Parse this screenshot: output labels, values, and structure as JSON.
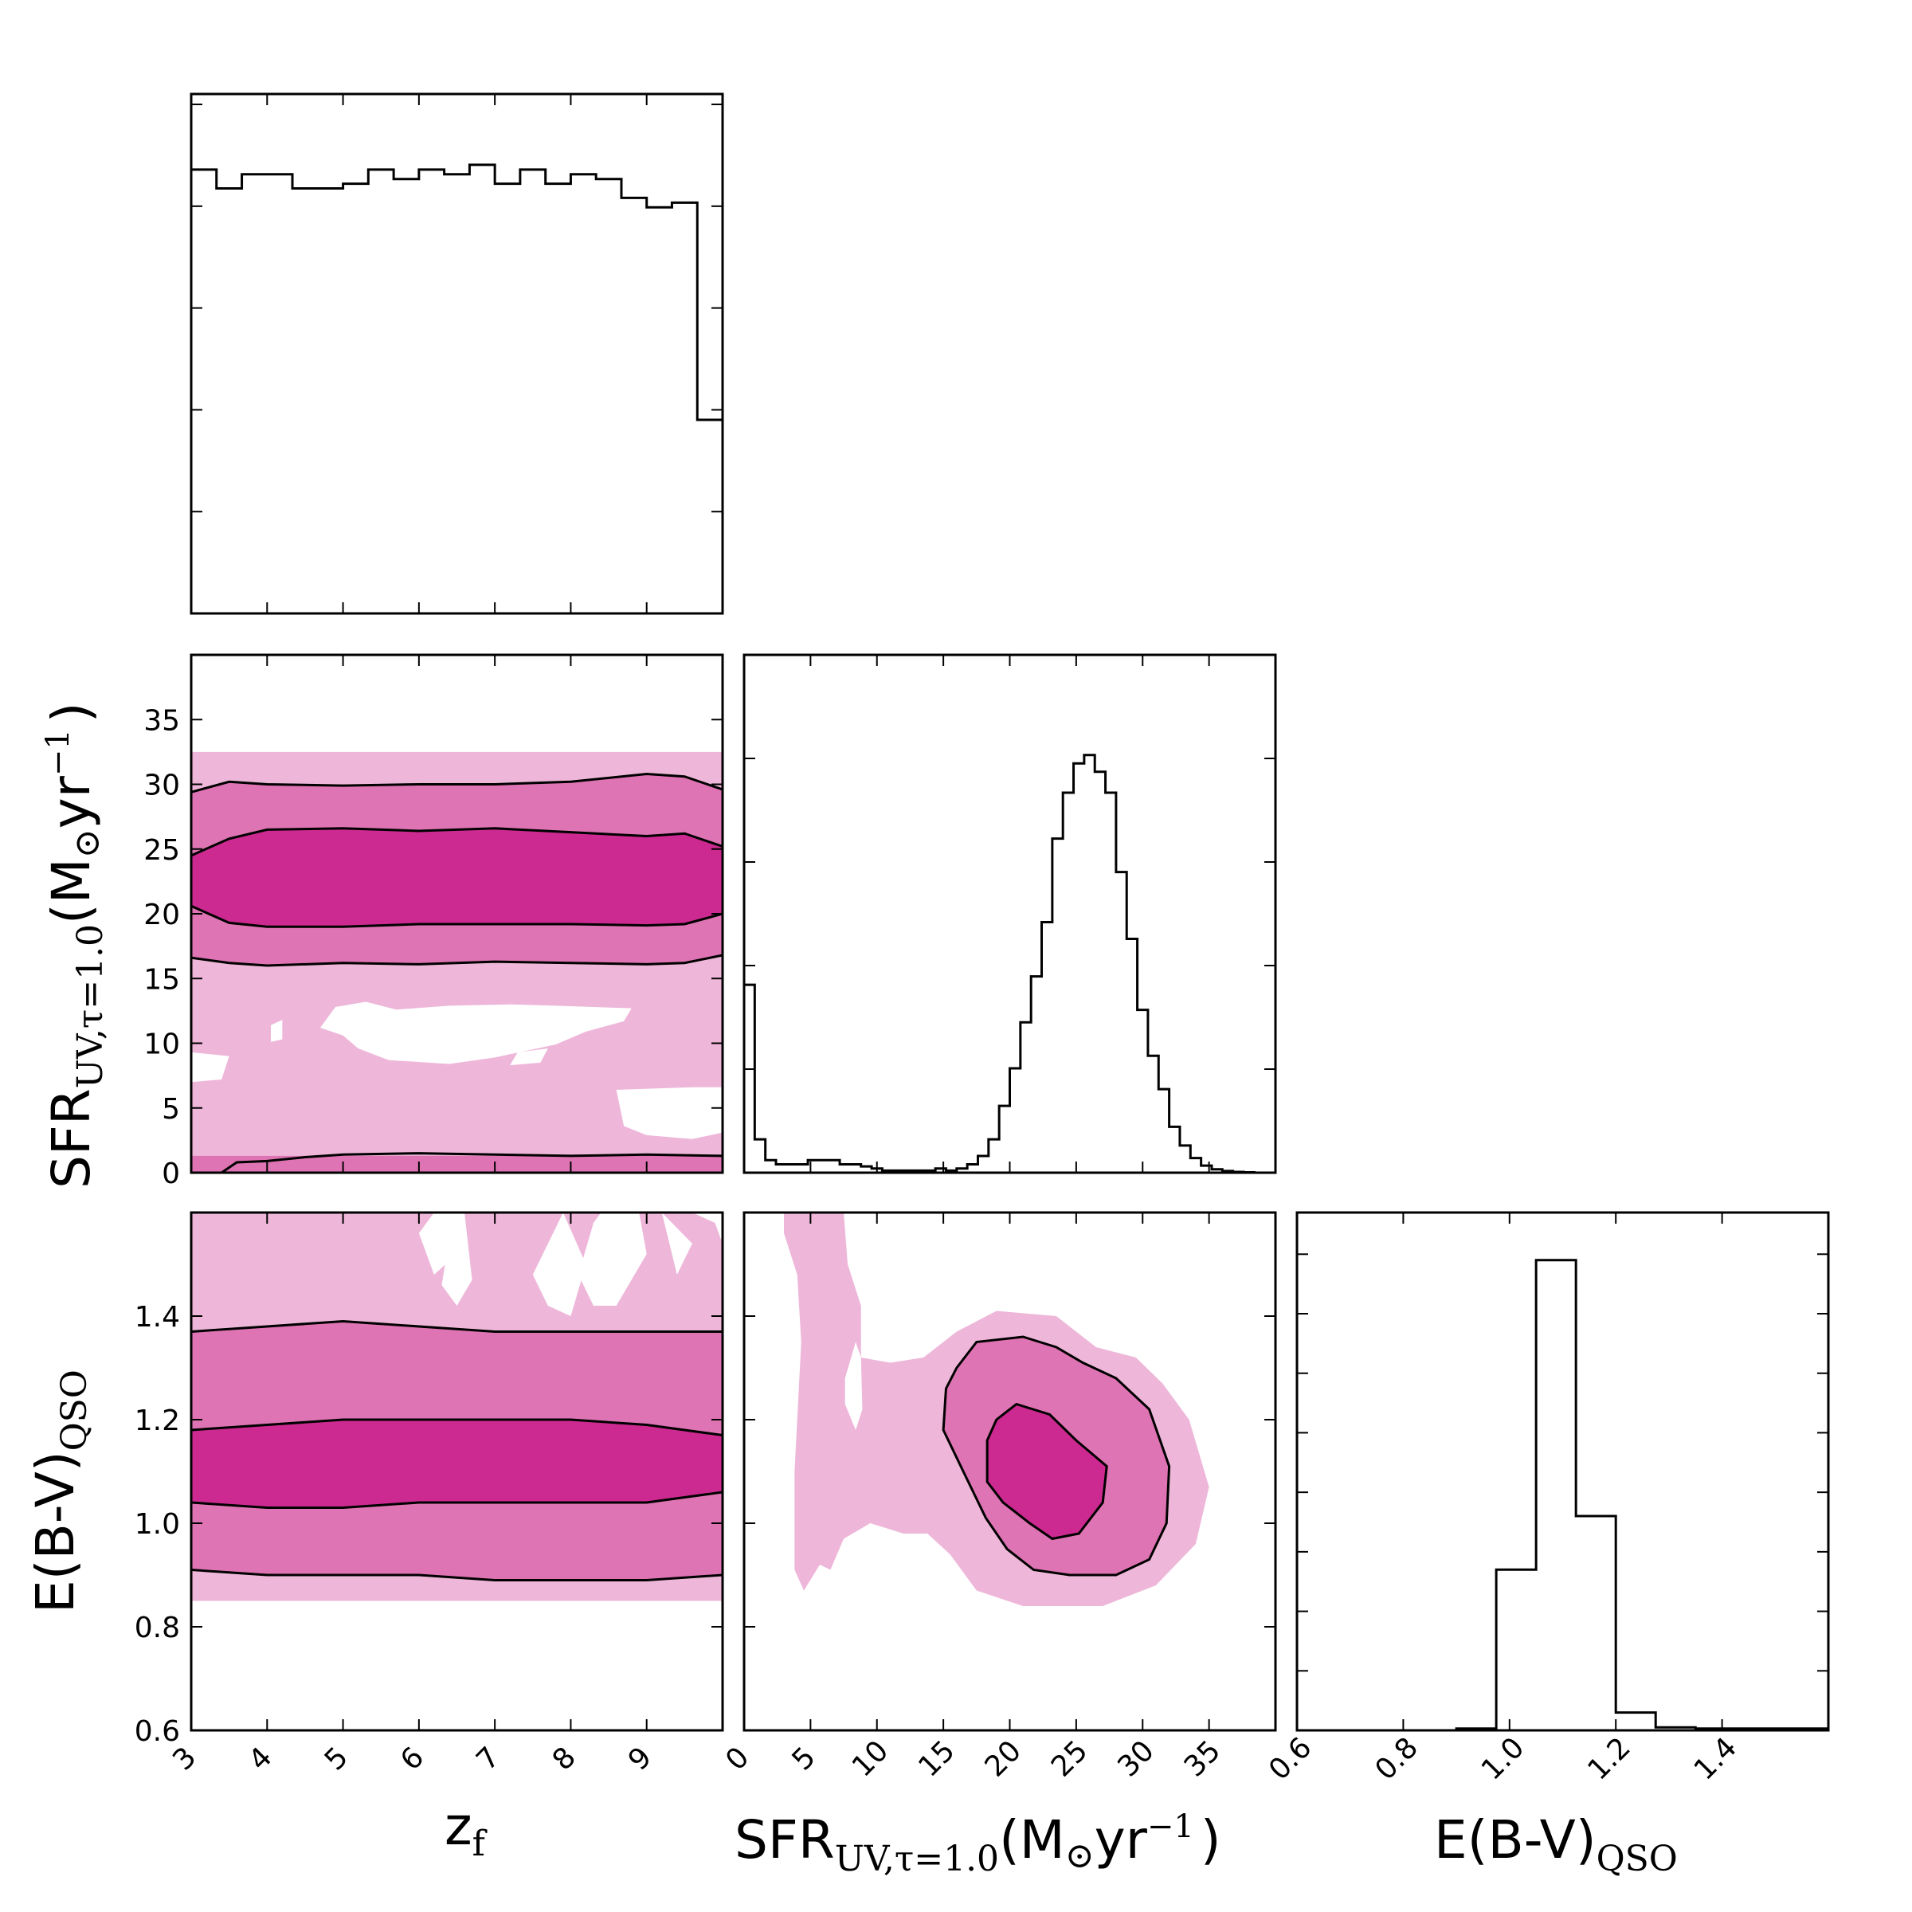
{
  "colors": {
    "level1": "#eeb7da",
    "level2": "#de74b3",
    "level3": "#cc2a90",
    "contour": "#000000",
    "frame": "#000000"
  },
  "labels": {
    "zf": {
      "main": "z",
      "sub": "f"
    },
    "sfr": {
      "main": "SFR",
      "sub": "UV,τ=1.0",
      "unit1": "(M",
      "sun": "⊙",
      "unit2": "yr",
      "sup": "−1",
      "close": ")"
    },
    "ebv": {
      "main": "E(B-V)",
      "sub": "QSO"
    }
  },
  "chart_data": [
    {
      "type": "histogram",
      "panel": "zf-marginal",
      "xlabel": "z_f",
      "xlim": [
        3,
        10
      ],
      "xticks": [
        3,
        4,
        5,
        6,
        7,
        8,
        9
      ],
      "bin_edges": [
        3.0,
        3.333,
        3.667,
        4.0,
        4.333,
        4.667,
        5.0,
        5.333,
        5.667,
        6.0,
        6.333,
        6.667,
        7.0,
        7.333,
        7.667,
        8.0,
        8.333,
        8.667,
        9.0,
        9.333,
        9.667,
        10.0
      ],
      "values": [
        0.94,
        0.9,
        0.93,
        0.93,
        0.9,
        0.9,
        0.91,
        0.94,
        0.92,
        0.94,
        0.93,
        0.95,
        0.91,
        0.94,
        0.91,
        0.93,
        0.92,
        0.88,
        0.86,
        0.87,
        0.41
      ],
      "ylim": [
        0,
        1.1
      ]
    },
    {
      "type": "contour",
      "panel": "zf-vs-sfr",
      "xlabel": "z_f",
      "ylabel": "SFR_UV,tau=1.0 (M_sun yr^-1)",
      "xlim": [
        3,
        10
      ],
      "ylim": [
        0,
        40
      ],
      "yticks": [
        0,
        5,
        10,
        15,
        20,
        25,
        30,
        35
      ],
      "levels": [
        {
          "name": "inner",
          "x": [
            3,
            3.5,
            4.0,
            5.0,
            6.0,
            7.0,
            8.0,
            9.0,
            9.5,
            10.0
          ],
          "lower": [
            20.6,
            19.3,
            19.0,
            19.0,
            19.2,
            19.2,
            19.2,
            19.1,
            19.2,
            20.0
          ],
          "upper": [
            24.5,
            25.8,
            26.5,
            26.6,
            26.4,
            26.6,
            26.3,
            26.0,
            26.2,
            25.2
          ]
        },
        {
          "name": "middle",
          "x": [
            3,
            3.5,
            4.0,
            5.0,
            6.0,
            7.0,
            8.0,
            9.0,
            9.5,
            10.0
          ],
          "lower": [
            16.6,
            16.2,
            16.0,
            16.2,
            16.1,
            16.3,
            16.2,
            16.1,
            16.2,
            16.8
          ],
          "upper": [
            29.4,
            30.2,
            30.0,
            29.9,
            30.0,
            30.0,
            30.2,
            30.8,
            30.6,
            29.6
          ]
        },
        {
          "name": "outer",
          "x": [
            3,
            10
          ],
          "lower": [
            0,
            0
          ],
          "upper": [
            32.5,
            33.0
          ]
        }
      ],
      "low_contour": {
        "x": [
          3.4,
          3.6,
          4.0,
          4.5,
          5.0,
          6.0,
          7.0,
          8.0,
          9.0,
          10.0
        ],
        "y": [
          0,
          0.8,
          0.9,
          1.2,
          1.4,
          1.5,
          1.4,
          1.3,
          1.4,
          1.3
        ]
      }
    },
    {
      "type": "histogram",
      "panel": "sfr-marginal",
      "xlabel": "SFR_UV,tau=1.0 (M_sun yr^-1)",
      "xlim": [
        0,
        40
      ],
      "xticks": [
        0,
        5,
        10,
        15,
        20,
        25,
        30,
        35
      ],
      "bin_width": 0.8,
      "values": [
        0.45,
        0.08,
        0.03,
        0.02,
        0.02,
        0.02,
        0.03,
        0.03,
        0.03,
        0.02,
        0.02,
        0.015,
        0.01,
        0.005,
        0.005,
        0.005,
        0.005,
        0.005,
        0.01,
        0.005,
        0.01,
        0.02,
        0.04,
        0.08,
        0.16,
        0.25,
        0.36,
        0.47,
        0.6,
        0.8,
        0.91,
        0.98,
        1.0,
        0.96,
        0.91,
        0.72,
        0.56,
        0.39,
        0.28,
        0.2,
        0.11,
        0.065,
        0.035,
        0.017,
        0.008,
        0.004,
        0.002,
        0.001,
        0,
        0
      ],
      "ylim": [
        0,
        1.24
      ]
    },
    {
      "type": "contour",
      "panel": "zf-vs-ebv",
      "xlabel": "z_f",
      "ylabel": "E(B-V)_QSO",
      "xlim": [
        3,
        10
      ],
      "ylim": [
        0.6,
        1.6
      ],
      "xticks": [
        3,
        4,
        5,
        6,
        7,
        8,
        9
      ],
      "yticks": [
        0.6,
        0.8,
        1.0,
        1.2,
        1.4
      ],
      "levels": [
        {
          "name": "inner",
          "lower": [
            1.04,
            1.03,
            1.03,
            1.04,
            1.04,
            1.04,
            1.04,
            1.06
          ],
          "upper": [
            1.18,
            1.19,
            1.2,
            1.2,
            1.2,
            1.2,
            1.19,
            1.17
          ]
        },
        {
          "name": "middle",
          "lower": [
            0.91,
            0.9,
            0.9,
            0.9,
            0.89,
            0.89,
            0.89,
            0.9
          ],
          "upper": [
            1.37,
            1.38,
            1.39,
            1.38,
            1.37,
            1.37,
            1.37,
            1.37
          ]
        },
        {
          "name": "outer",
          "lower": [
            0.85,
            0.85
          ],
          "upper": [
            1.6,
            1.6
          ]
        }
      ]
    },
    {
      "type": "contour",
      "panel": "sfr-vs-ebv",
      "xlabel": "SFR_UV,tau=1.0 (M_sun yr^-1)",
      "ylabel": "E(B-V)_QSO",
      "xlim": [
        0,
        40
      ],
      "ylim": [
        0.6,
        1.6
      ],
      "xticks": [
        0,
        5,
        10,
        15,
        20,
        25,
        30,
        35
      ],
      "yticks": [
        0.6,
        0.8,
        1.0,
        1.2,
        1.4
      ],
      "peak": {
        "x": 23,
        "y": 1.1
      },
      "levels": [
        {
          "name": "inner",
          "center": [
            23.0,
            1.11
          ],
          "x_span": [
            18,
            27
          ],
          "y_span": [
            0.98,
            1.23
          ]
        },
        {
          "name": "middle",
          "center": [
            23.0,
            1.12
          ],
          "x_span": [
            15,
            32
          ],
          "y_span": [
            0.9,
            1.36
          ]
        },
        {
          "name": "outer",
          "x_span": [
            3,
            35
          ],
          "y_span": [
            0.84,
            1.6
          ]
        }
      ]
    },
    {
      "type": "histogram",
      "panel": "ebv-marginal",
      "xlabel": "E(B-V)_QSO",
      "xlim": [
        0.6,
        1.6
      ],
      "xticks": [
        0.6,
        0.8,
        1.0,
        1.2,
        1.4
      ],
      "bin_edges": [
        0.6,
        0.675,
        0.75,
        0.825,
        0.9,
        0.975,
        1.05,
        1.125,
        1.2,
        1.275,
        1.35,
        1.425,
        1.5,
        1.575,
        1.6
      ],
      "values": [
        0,
        0,
        0,
        0,
        0.003,
        0.27,
        0.79,
        0.36,
        0.03,
        0.005,
        0.003,
        0.003,
        0.003,
        0.003
      ],
      "ylim": [
        0,
        0.87
      ]
    }
  ]
}
